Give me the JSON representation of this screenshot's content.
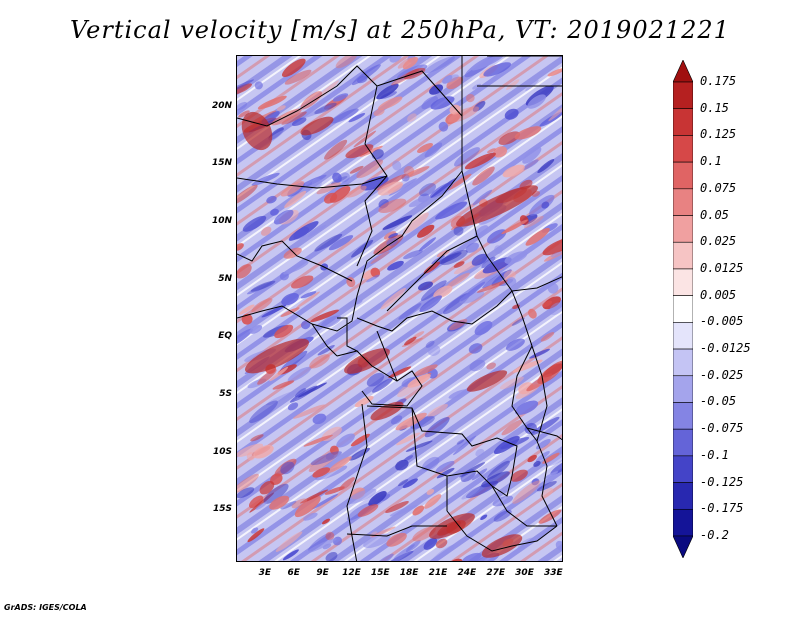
{
  "title": "Vertical velocity [m/s] at 250hPa, VT: 2019021221",
  "footer": "GrADS: IGES/COLA",
  "map": {
    "projection": "latlon",
    "lat_range": [
      -19.5,
      24.5
    ],
    "lon_range": [
      0,
      34
    ],
    "lat_ticks": [
      {
        "label": "20N",
        "value": 20
      },
      {
        "label": "15N",
        "value": 15
      },
      {
        "label": "10N",
        "value": 10
      },
      {
        "label": "5N",
        "value": 5
      },
      {
        "label": "EQ",
        "value": 0
      },
      {
        "label": "5S",
        "value": -5
      },
      {
        "label": "10S",
        "value": -10
      },
      {
        "label": "15S",
        "value": -15
      }
    ],
    "lon_ticks": [
      {
        "label": "3E",
        "value": 3
      },
      {
        "label": "6E",
        "value": 6
      },
      {
        "label": "9E",
        "value": 9
      },
      {
        "label": "12E",
        "value": 12
      },
      {
        "label": "15E",
        "value": 15
      },
      {
        "label": "18E",
        "value": 18
      },
      {
        "label": "21E",
        "value": 21
      },
      {
        "label": "24E",
        "value": 24
      },
      {
        "label": "27E",
        "value": 27
      },
      {
        "label": "30E",
        "value": 30
      },
      {
        "label": "33E",
        "value": 33
      }
    ]
  },
  "colorbar": {
    "levels": [
      "0.175",
      "0.15",
      "0.125",
      "0.1",
      "0.075",
      "0.05",
      "0.025",
      "0.0125",
      "0.005",
      "-0.005",
      "-0.0125",
      "-0.025",
      "-0.05",
      "-0.075",
      "-0.1",
      "-0.125",
      "-0.175",
      "-0.2"
    ],
    "colors": [
      "#a01010",
      "#b52020",
      "#c83434",
      "#d64848",
      "#e06464",
      "#e88282",
      "#f0a0a0",
      "#f6c4c4",
      "#fbe4e4",
      "#ffffff",
      "#e4e4fb",
      "#c4c4f4",
      "#a4a4ec",
      "#8484e4",
      "#6464d8",
      "#4444c8",
      "#2828b0",
      "#141498",
      "#0a0a80"
    ]
  },
  "colors": {
    "background_field": "#eeeefa",
    "positive": "#d84040",
    "negative": "#5050d8",
    "boundaries": "#000000"
  }
}
